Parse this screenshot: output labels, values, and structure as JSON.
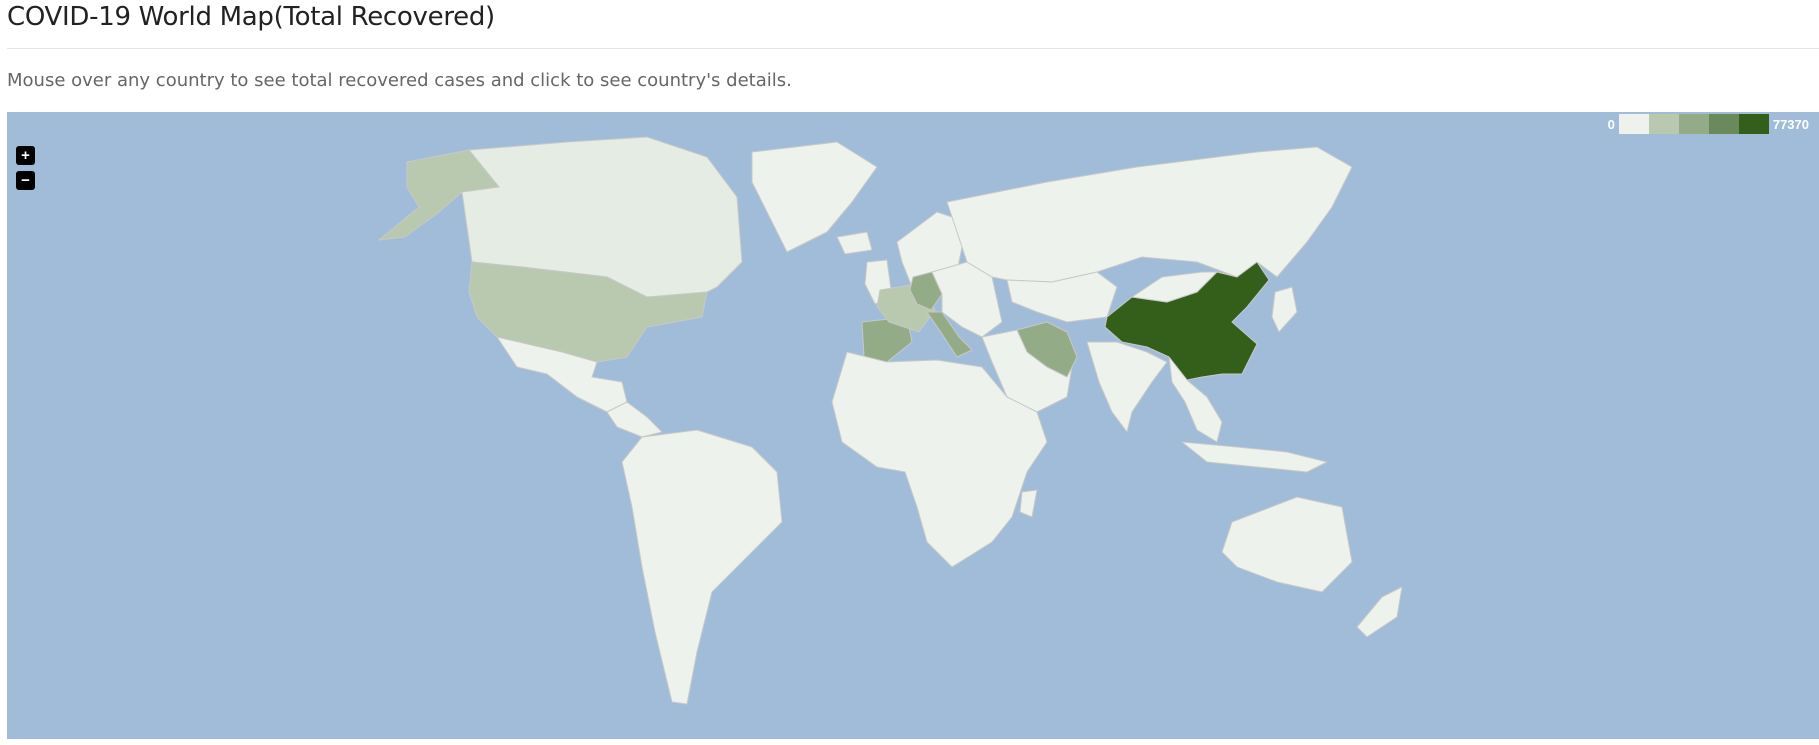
{
  "page": {
    "title": "COVID-19 World Map(Total Recovered)",
    "subtitle": "Mouse over any country to see total recovered cases and click to see country's details."
  },
  "map": {
    "ocean_color": "#a1bcd9",
    "border_color": "#c8c8c8",
    "zoom_in_label": "+",
    "zoom_out_label": "−",
    "legend": {
      "min_label": "0",
      "max_label": "77370",
      "scale_colors": [
        "#edf2ec",
        "#b8c9b0",
        "#94ab88",
        "#6a8a5b",
        "#345f1a"
      ]
    },
    "country_fills": {
      "default": "#edf2ec",
      "china": "#345f1a",
      "united-states": "#b8c9b0",
      "alaska": "#b8c9b0",
      "canada": "#e5ece3",
      "iran": "#94ab88",
      "spain": "#94ab88",
      "italy": "#94ab88",
      "germany": "#94ab88",
      "france": "#b8c9b0",
      "russia": "#edf2ec"
    }
  }
}
